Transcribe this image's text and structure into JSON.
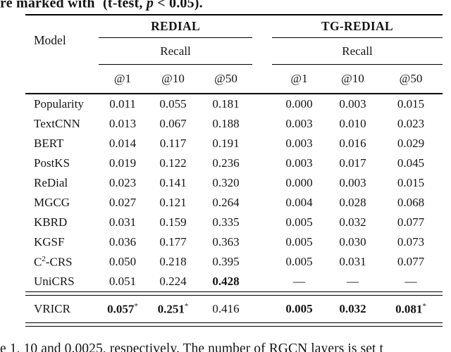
{
  "captions": {
    "top": {
      "prefix": "re marked with",
      "sup": "*",
      "mid": " (t-test, ",
      "pvar": "p",
      "rest": " < 0.05)."
    },
    "bottom": "e 1, 10 and 0.0025, respectively. The number of RGCN layers is set t"
  },
  "table": {
    "model_header": "Model",
    "groups": [
      {
        "label": "REDIAL",
        "metric": "Recall",
        "columns": [
          "@1",
          "@10",
          "@50"
        ]
      },
      {
        "label": "TG-REDIAL",
        "metric": "Recall",
        "columns": [
          "@1",
          "@10",
          "@50"
        ]
      }
    ],
    "rows": [
      {
        "model": [
          {
            "t": "Popularity"
          }
        ],
        "cells": [
          {
            "t": "0.011"
          },
          {
            "t": "0.055"
          },
          {
            "t": "0.181"
          },
          {
            "t": "0.000"
          },
          {
            "t": "0.003"
          },
          {
            "t": "0.015"
          }
        ]
      },
      {
        "model": [
          {
            "t": "TextCNN"
          }
        ],
        "cells": [
          {
            "t": "0.013"
          },
          {
            "t": "0.067"
          },
          {
            "t": "0.188"
          },
          {
            "t": "0.003"
          },
          {
            "t": "0.010"
          },
          {
            "t": "0.023"
          }
        ]
      },
      {
        "model": [
          {
            "t": "BERT"
          }
        ],
        "cells": [
          {
            "t": "0.014"
          },
          {
            "t": "0.117"
          },
          {
            "t": "0.191"
          },
          {
            "t": "0.003"
          },
          {
            "t": "0.016"
          },
          {
            "t": "0.029"
          }
        ]
      },
      {
        "model": [
          {
            "t": "PostKS"
          }
        ],
        "cells": [
          {
            "t": "0.019"
          },
          {
            "t": "0.122"
          },
          {
            "t": "0.236"
          },
          {
            "t": "0.003"
          },
          {
            "t": "0.017"
          },
          {
            "t": "0.045"
          }
        ]
      },
      {
        "model": [
          {
            "t": "ReDial"
          }
        ],
        "cells": [
          {
            "t": "0.023"
          },
          {
            "t": "0.141"
          },
          {
            "t": "0.320"
          },
          {
            "t": "0.000"
          },
          {
            "t": "0.003"
          },
          {
            "t": "0.015"
          }
        ]
      },
      {
        "model": [
          {
            "t": "MGCG"
          }
        ],
        "cells": [
          {
            "t": "0.027"
          },
          {
            "t": "0.121"
          },
          {
            "t": "0.264"
          },
          {
            "t": "0.004"
          },
          {
            "t": "0.028"
          },
          {
            "t": "0.068"
          }
        ]
      },
      {
        "model": [
          {
            "t": "KBRD"
          }
        ],
        "cells": [
          {
            "t": "0.031"
          },
          {
            "t": "0.159"
          },
          {
            "t": "0.335"
          },
          {
            "t": "0.005"
          },
          {
            "t": "0.032"
          },
          {
            "t": "0.077"
          }
        ]
      },
      {
        "model": [
          {
            "t": "KGSF"
          }
        ],
        "cells": [
          {
            "t": "0.036"
          },
          {
            "t": "0.177"
          },
          {
            "t": "0.363"
          },
          {
            "t": "0.005"
          },
          {
            "t": "0.030"
          },
          {
            "t": "0.073"
          }
        ]
      },
      {
        "model": [
          {
            "t": "C"
          },
          {
            "t": "2",
            "sup": true
          },
          {
            "t": "-CRS"
          }
        ],
        "cells": [
          {
            "t": "0.050"
          },
          {
            "t": "0.218"
          },
          {
            "t": "0.395"
          },
          {
            "t": "0.005"
          },
          {
            "t": "0.031"
          },
          {
            "t": "0.077"
          }
        ]
      },
      {
        "model": [
          {
            "t": "UniCRS"
          }
        ],
        "cells": [
          {
            "t": "0.051"
          },
          {
            "t": "0.224"
          },
          {
            "t": "0.428",
            "b": true
          },
          {
            "t": "—"
          },
          {
            "t": "—"
          },
          {
            "t": "—"
          }
        ]
      }
    ],
    "highlight_row": {
      "model": [
        {
          "t": "VRICR"
        }
      ],
      "cells": [
        {
          "t": "0.057",
          "b": true,
          "s": "*"
        },
        {
          "t": "0.251",
          "b": true,
          "s": "*"
        },
        {
          "t": "0.416"
        },
        {
          "t": "0.005",
          "b": true
        },
        {
          "t": "0.032",
          "b": true
        },
        {
          "t": "0.081",
          "b": true,
          "s": "*"
        }
      ]
    }
  }
}
